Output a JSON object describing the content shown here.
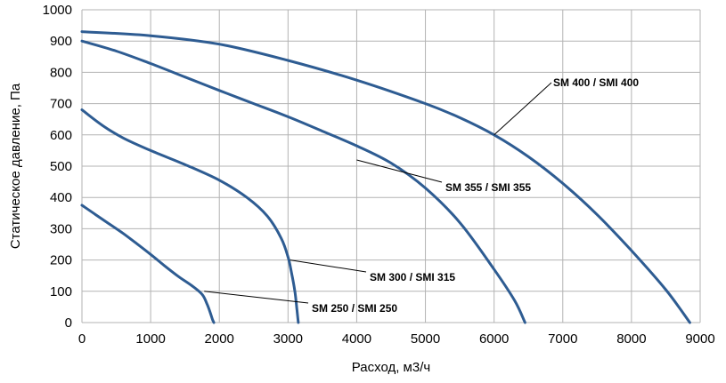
{
  "chart_data": {
    "type": "line",
    "xlabel": "Расход, м3/ч",
    "ylabel": "Статическое давление, Па",
    "xlim": [
      0,
      9000
    ],
    "ylim": [
      0,
      1000
    ],
    "xticks": [
      0,
      1000,
      2000,
      3000,
      4000,
      5000,
      6000,
      7000,
      8000,
      9000
    ],
    "yticks": [
      0,
      100,
      200,
      300,
      400,
      500,
      600,
      700,
      800,
      900,
      1000
    ],
    "grid": true,
    "line_color": "#2e5c92",
    "series": [
      {
        "name": "SM 250 / SMI 250",
        "x": [
          0,
          200,
          400,
          600,
          800,
          1000,
          1200,
          1400,
          1600,
          1750,
          1820,
          1870,
          1900,
          1920
        ],
        "y": [
          375,
          345,
          315,
          285,
          252,
          218,
          182,
          148,
          118,
          90,
          60,
          30,
          10,
          0
        ]
      },
      {
        "name": "SM 300 / SMI 315",
        "x": [
          0,
          300,
          600,
          1000,
          1500,
          2000,
          2400,
          2700,
          2900,
          3000,
          3050,
          3100,
          3130,
          3150
        ],
        "y": [
          680,
          630,
          590,
          550,
          505,
          455,
          400,
          340,
          270,
          210,
          160,
          100,
          40,
          0
        ]
      },
      {
        "name": "SM 355 / SMI 355",
        "x": [
          0,
          500,
          1000,
          1500,
          2000,
          2500,
          3000,
          3500,
          4000,
          4500,
          5000,
          5500,
          6000,
          6300,
          6450
        ],
        "y": [
          900,
          868,
          828,
          785,
          742,
          700,
          658,
          612,
          565,
          510,
          430,
          320,
          170,
          70,
          0
        ]
      },
      {
        "name": "SM 400 / SMI 400",
        "x": [
          0,
          1000,
          2000,
          3000,
          4000,
          5000,
          5500,
          6000,
          6500,
          7000,
          7500,
          8000,
          8500,
          8850
        ],
        "y": [
          930,
          917,
          890,
          838,
          775,
          700,
          655,
          600,
          530,
          445,
          345,
          230,
          105,
          0
        ]
      }
    ],
    "annotations": [
      {
        "text": "SM 400 / SMI 400",
        "series": 3,
        "at_x": 6000,
        "at_y": 600
      },
      {
        "text": "SM 355 / SMI 355",
        "series": 2,
        "at_x": 4000,
        "at_y": 520
      },
      {
        "text": "SM 300 / SMI 315",
        "series": 1,
        "at_x": 3030,
        "at_y": 200
      },
      {
        "text": "SM 250 / SMI 250",
        "series": 0,
        "at_x": 1780,
        "at_y": 100
      }
    ]
  }
}
